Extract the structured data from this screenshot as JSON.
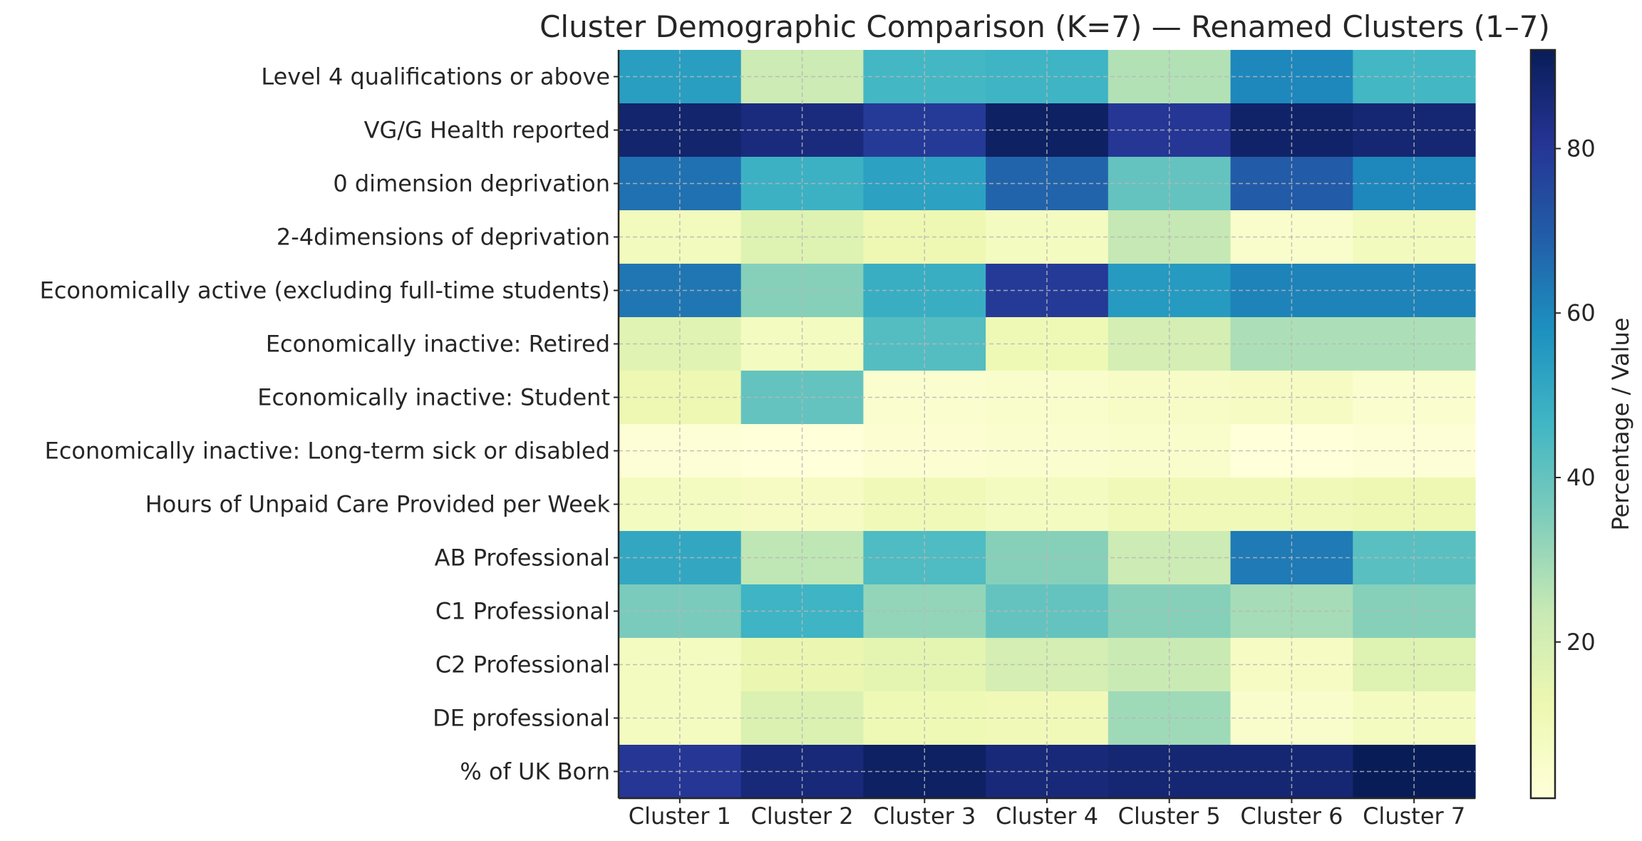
{
  "chart_data": {
    "type": "heatmap",
    "title": "Cluster Demographic Comparison (K=7) — Renamed Clusters (1–7)",
    "columns": [
      "Cluster 1",
      "Cluster 2",
      "Cluster 3",
      "Cluster 4",
      "Cluster 5",
      "Cluster 6",
      "Cluster 7"
    ],
    "rows": [
      "Level 4 qualifications or above",
      "VG/G Health reported",
      "0 dimension deprivation",
      "2-4dimensions of deprivation",
      "Economically active (excluding full-time students)",
      "Economically inactive: Retired",
      "Economically inactive: Student",
      "Economically inactive: Long-term sick or disabled",
      "Hours of Unpaid Care Provided per Week",
      "AB Professional",
      "C1 Professional",
      "C2 Professional",
      "DE professional",
      "% of UK Born"
    ],
    "values": [
      [
        54,
        22,
        46,
        47,
        27,
        60,
        46
      ],
      [
        88,
        85,
        79,
        90,
        80,
        89,
        87
      ],
      [
        65,
        48,
        53,
        68,
        40,
        70,
        60
      ],
      [
        9,
        17,
        12,
        8,
        24,
        5,
        9
      ],
      [
        64,
        34,
        49,
        79,
        55,
        61,
        61
      ],
      [
        16,
        8,
        43,
        11,
        20,
        28,
        28
      ],
      [
        12,
        40,
        4,
        5,
        6,
        7,
        4
      ],
      [
        2,
        1,
        3,
        4,
        5,
        1,
        2
      ],
      [
        8,
        7,
        10,
        8,
        10,
        10,
        12
      ],
      [
        51,
        25,
        44,
        34,
        22,
        63,
        42
      ],
      [
        36,
        47,
        32,
        40,
        34,
        29,
        34
      ],
      [
        8,
        13,
        15,
        20,
        23,
        7,
        17
      ],
      [
        8,
        18,
        11,
        10,
        30,
        5,
        8
      ],
      [
        80,
        86,
        90,
        86,
        87,
        87,
        92
      ]
    ],
    "colorbar": {
      "label": "Percentage / Value",
      "range": [
        1,
        92
      ],
      "ticks": [
        20,
        40,
        60,
        80
      ],
      "colormap": "YlGnBu"
    },
    "grid": true
  }
}
